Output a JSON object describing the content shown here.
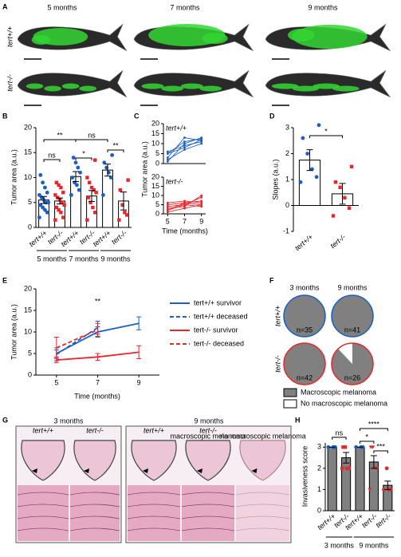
{
  "figure": {
    "panel_labels": [
      "A",
      "B",
      "C",
      "D",
      "E",
      "F",
      "G",
      "H"
    ],
    "panel_a": {
      "columns": [
        "5 months",
        "7 months",
        "9 months"
      ],
      "rows": [
        "tert+/+",
        "tert-/-"
      ],
      "row_colors": [
        "#1b5fc1",
        "#e8262b"
      ]
    },
    "panel_g": {
      "columns": [
        "3 months",
        "9 months"
      ],
      "genotypes": [
        "tert+/+",
        "tert-/-",
        "tert+/+",
        "tert-/-"
      ],
      "genotype_colors": [
        "#1b5fc1",
        "#e8262b",
        "#1b5fc1",
        "#e8262b"
      ],
      "subtitles": [
        "macroscopic melanoma",
        "no macroscopic melanoma"
      ]
    }
  },
  "chart_data": [
    {
      "type": "scatter-bar",
      "ylabel": "Tumor area (a.u.)",
      "categories": [
        "tert+/+",
        "tert-/-",
        "tert+/+",
        "tert-/-",
        "tert+/+",
        "tert-/-"
      ],
      "colors": [
        "#1b5fc1",
        "#e8262b",
        "#1b5fc1",
        "#e8262b",
        "#1b5fc1",
        "#e8262b"
      ],
      "markers": [
        "circle",
        "square",
        "circle",
        "square",
        "circle",
        "square"
      ],
      "bar_color": "#ffffff",
      "means": [
        5.5,
        5.3,
        10.2,
        6.3,
        11.5,
        5.3
      ],
      "errors": [
        0.7,
        0.6,
        1.0,
        1.1,
        1.2,
        1.8
      ],
      "points": [
        [
          2,
          3,
          3.5,
          4,
          4.5,
          5,
          5,
          5.5,
          6,
          6.5,
          7,
          8,
          9,
          10.5
        ],
        [
          1.5,
          2,
          3,
          3.5,
          4,
          4.5,
          5,
          5.5,
          6,
          6.5,
          7,
          8,
          8.5,
          9
        ],
        [
          6.5,
          7.5,
          8.5,
          9,
          10,
          11,
          12,
          13,
          14
        ],
        [
          1.5,
          3,
          4,
          5,
          6,
          7,
          7.5,
          8,
          9,
          10,
          13.5
        ],
        [
          6.5,
          10,
          11,
          12,
          13,
          14.5
        ],
        [
          1.5,
          2.5,
          3,
          4.5,
          7.5,
          9.5
        ]
      ],
      "ylim": [
        0,
        20
      ],
      "yticks": [
        0,
        5,
        10,
        15,
        20
      ],
      "significance": [
        "**",
        "ns",
        "ns",
        "*",
        "**"
      ],
      "groups": [
        "5 months",
        "7 months",
        "9 months"
      ]
    },
    {
      "type": "line",
      "title": "tert+/+",
      "color": "#1b5fc1",
      "ylabel": "Tumor area (a.u.)",
      "x": [
        5,
        7,
        9
      ],
      "xlim": [
        4.5,
        9.5
      ],
      "ylim": [
        0,
        20
      ],
      "yticks": [
        0,
        5,
        10,
        15,
        20
      ],
      "series": [
        {
          "values": [
            5,
            8,
            12
          ]
        },
        {
          "values": [
            3,
            13,
            11.5
          ]
        },
        {
          "values": [
            2,
            7,
            10
          ]
        },
        {
          "values": [
            6,
            9,
            11
          ]
        },
        {
          "values": [
            1,
            10,
            13
          ]
        },
        {
          "values": [
            5,
            11,
            12.5
          ]
        }
      ]
    },
    {
      "type": "line",
      "title": "tert-/-",
      "color": "#e8262b",
      "xlabel": "Time (months)",
      "x": [
        5,
        7,
        9
      ],
      "xlim": [
        4.5,
        9.5
      ],
      "xticks": [
        5,
        7,
        9
      ],
      "ylim": [
        0,
        20
      ],
      "yticks": [
        0,
        5,
        10,
        15,
        20
      ],
      "series": [
        {
          "values": [
            5,
            6,
            7
          ]
        },
        {
          "values": [
            3,
            4,
            10
          ]
        },
        {
          "values": [
            2,
            6,
            5
          ]
        },
        {
          "values": [
            4,
            5,
            9
          ]
        },
        {
          "values": [
            1,
            3,
            5
          ]
        },
        {
          "values": [
            6,
            7,
            6
          ]
        },
        {
          "values": [
            2,
            5,
            4
          ]
        }
      ]
    },
    {
      "type": "scatter-bar",
      "ylabel": "Slopes (a.u.)",
      "categories": [
        "tert+/+",
        "tert-/-"
      ],
      "colors": [
        "#1b5fc1",
        "#e8262b"
      ],
      "markers": [
        "circle",
        "square"
      ],
      "bar_color": "#ffffff",
      "means": [
        1.75,
        0.45
      ],
      "errors": [
        0.4,
        0.4
      ],
      "points": [
        [
          0.9,
          1.1,
          1.4,
          2.0,
          2.6,
          3.1
        ],
        [
          -0.4,
          -0.1,
          0.3,
          0.7,
          0.9,
          1.5
        ]
      ],
      "ylim": [
        -1,
        3
      ],
      "yticks": [
        -1,
        0,
        1,
        2,
        3
      ],
      "significance": [
        "*"
      ]
    },
    {
      "type": "line",
      "xlabel": "Time (months)",
      "ylabel": "Tumor area (a.u.)",
      "x": [
        5,
        7,
        9
      ],
      "xlim": [
        4,
        10
      ],
      "xticks": [
        5,
        7,
        9
      ],
      "ylim": [
        0,
        20
      ],
      "yticks": [
        0,
        5,
        10,
        15,
        20
      ],
      "annotation": "**",
      "annotation_color": "#e8262b",
      "series": [
        {
          "name": "tert+/+ survivor",
          "color": "#1b5fc1",
          "dashed": false,
          "values": [
            5,
            10,
            12
          ],
          "errors": [
            0.8,
            1.2,
            1.5
          ]
        },
        {
          "name": "tert+/+ deceased",
          "color": "#1b5fc1",
          "dashed": true,
          "values": [
            4.8,
            11,
            null
          ],
          "errors": [
            1.5,
            1.5,
            null
          ]
        },
        {
          "name": "tert-/- survivor",
          "color": "#e8262b",
          "dashed": false,
          "values": [
            3.5,
            4.2,
            5.3
          ],
          "errors": [
            0.6,
            0.8,
            1.5
          ]
        },
        {
          "name": "tert-/- deceased",
          "color": "#e8262b",
          "dashed": true,
          "values": [
            6.3,
            10.5,
            null
          ],
          "errors": [
            2.5,
            1.5,
            null
          ]
        }
      ]
    },
    {
      "type": "pie",
      "columns": [
        "3 months",
        "9 months"
      ],
      "rows": [
        "tert+/+",
        "tert-/-"
      ],
      "row_colors": [
        "#1b5fc1",
        "#e8262b"
      ],
      "colors": [
        "#808080",
        "#ffffff"
      ],
      "pies": [
        {
          "n_label": "n=35",
          "values": [
            100,
            0
          ]
        },
        {
          "n_label": "n=41",
          "values": [
            100,
            0
          ]
        },
        {
          "n_label": "n=42",
          "values": [
            100,
            0
          ]
        },
        {
          "n_label": "n=26",
          "values": [
            88,
            12
          ]
        }
      ],
      "legend": [
        "Macroscopic melanoma",
        "No macroscopic melanoma"
      ]
    },
    {
      "type": "scatter-bar",
      "ylabel": "Invasiveness score",
      "categories": [
        "tert+/+",
        "tert-/-",
        "tert+/+",
        "tert-/-",
        "tert-/-"
      ],
      "colors": [
        "#1b5fc1",
        "#e8262b",
        "#1b5fc1",
        "#e8262b",
        "#e8262b"
      ],
      "markers": [
        "circle",
        "square",
        "circle",
        "triangle",
        "circle"
      ],
      "bar_color": "#808080",
      "means": [
        3.0,
        2.5,
        3.0,
        2.3,
        1.2
      ],
      "errors": [
        0,
        0.25,
        0,
        0.3,
        0.2
      ],
      "points": [
        [
          3,
          3,
          3
        ],
        [
          2,
          2,
          2,
          3,
          3
        ],
        [
          3,
          3,
          3
        ],
        [
          1,
          2,
          2,
          3,
          3
        ],
        [
          1,
          1,
          1,
          2
        ]
      ],
      "ylim": [
        0,
        3.2
      ],
      "yticks": [
        0,
        1,
        2,
        3
      ],
      "significance": [
        "ns",
        "*",
        "****",
        "***"
      ],
      "groups": [
        "3 months",
        "9 months"
      ]
    }
  ]
}
